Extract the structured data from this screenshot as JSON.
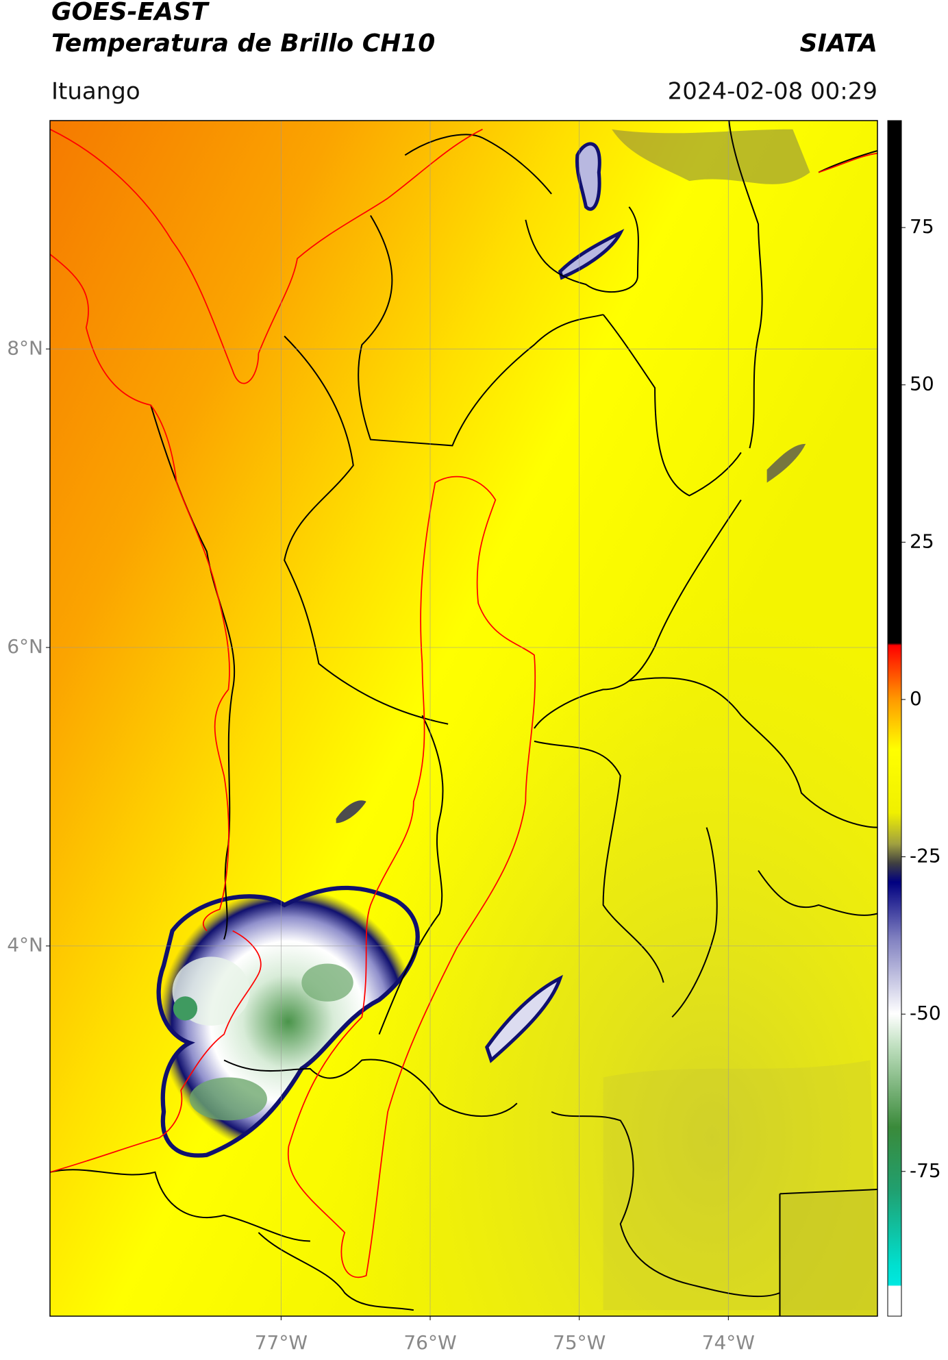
{
  "header": {
    "title": "GOES-EAST",
    "subtitle": "Temperatura de Brillo CH10",
    "brand": "SIATA",
    "location": "Ituango",
    "timestamp": "2024-02-08 00:29"
  },
  "chart_data": {
    "type": "map",
    "xlim": [
      -78.55,
      -73.0
    ],
    "ylim": [
      1.52,
      9.53
    ],
    "xticks": [
      {
        "value": -77,
        "label": "77°W"
      },
      {
        "value": -76,
        "label": "76°W"
      },
      {
        "value": -75,
        "label": "75°W"
      },
      {
        "value": -74,
        "label": "74°W"
      }
    ],
    "yticks": [
      {
        "value": 8,
        "label": "8°N"
      },
      {
        "value": 6,
        "label": "6°N"
      },
      {
        "value": 4,
        "label": "4°N"
      }
    ],
    "grid": true,
    "colorbar": {
      "lim": [
        -98,
        92
      ],
      "ticks": [
        75,
        50,
        25,
        0,
        -25,
        -50,
        -75
      ]
    }
  }
}
